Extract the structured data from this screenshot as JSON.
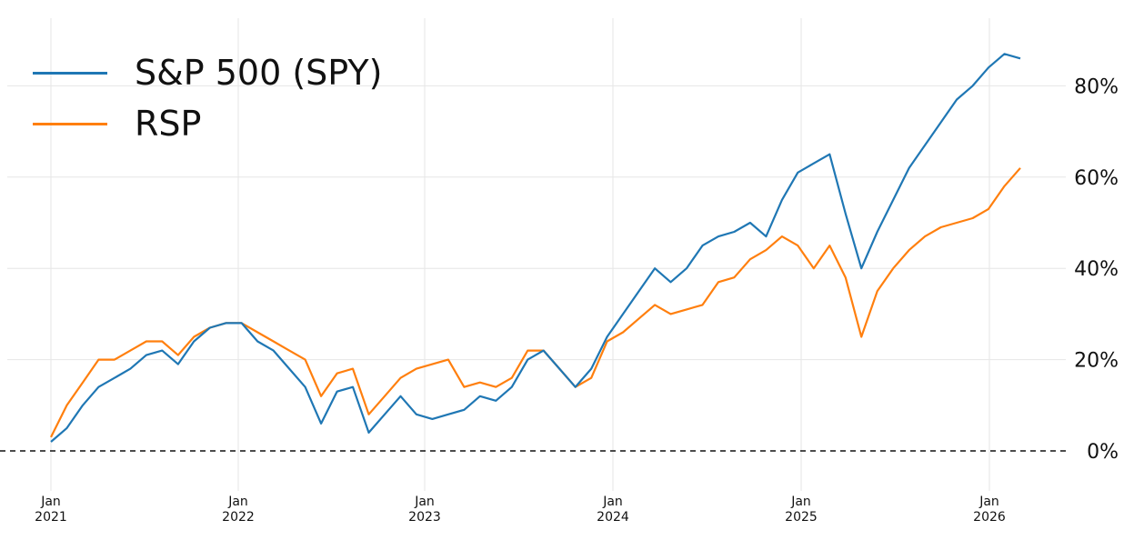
{
  "chart_data": {
    "type": "line",
    "title": "",
    "xlabel": "",
    "ylabel": "",
    "x": [
      "2021-01",
      "2021-02",
      "2021-03",
      "2021-04",
      "2021-05",
      "2021-06",
      "2021-07",
      "2021-08",
      "2021-09",
      "2021-10",
      "2021-11",
      "2021-12",
      "2022-01",
      "2022-02",
      "2022-03",
      "2022-04",
      "2022-05",
      "2022-06",
      "2022-07",
      "2022-08",
      "2022-09",
      "2022-10",
      "2022-11",
      "2022-12",
      "2023-01",
      "2023-02",
      "2023-03",
      "2023-04",
      "2023-05",
      "2023-06",
      "2023-07",
      "2023-08",
      "2023-09",
      "2023-10",
      "2023-11",
      "2023-12",
      "2024-01",
      "2024-02",
      "2024-03",
      "2024-04",
      "2024-05",
      "2024-06",
      "2024-07",
      "2024-08",
      "2024-09",
      "2024-10",
      "2024-11",
      "2024-12",
      "2025-01",
      "2025-02",
      "2025-03",
      "2025-04",
      "2025-05",
      "2025-06",
      "2025-07",
      "2025-08",
      "2025-09",
      "2025-10",
      "2025-11",
      "2025-12",
      "2026-01",
      "2026-02"
    ],
    "series": [
      {
        "name": "S&P 500 (SPY)",
        "color": "#1f77b4",
        "values": [
          2,
          5,
          10,
          14,
          16,
          18,
          21,
          22,
          19,
          24,
          27,
          28,
          28,
          24,
          22,
          18,
          14,
          6,
          13,
          14,
          4,
          8,
          12,
          8,
          7,
          8,
          9,
          12,
          11,
          14,
          20,
          22,
          18,
          14,
          18,
          25,
          30,
          35,
          40,
          37,
          40,
          45,
          47,
          48,
          50,
          47,
          55,
          61,
          63,
          65,
          52,
          40,
          48,
          55,
          62,
          67,
          72,
          77,
          80,
          84,
          87,
          86
        ]
      },
      {
        "name": "RSP",
        "color": "#ff7f0e",
        "values": [
          3,
          10,
          15,
          20,
          20,
          22,
          24,
          24,
          21,
          25,
          27,
          28,
          28,
          26,
          24,
          22,
          20,
          12,
          17,
          18,
          8,
          12,
          16,
          18,
          19,
          20,
          14,
          15,
          14,
          16,
          22,
          22,
          18,
          14,
          16,
          24,
          26,
          29,
          32,
          30,
          31,
          32,
          37,
          38,
          42,
          44,
          47,
          45,
          40,
          45,
          38,
          25,
          35,
          40,
          44,
          47,
          49,
          50,
          51,
          53,
          58,
          62
        ]
      }
    ],
    "y_ticks": [
      "0%",
      "20%",
      "40%",
      "60%",
      "80%"
    ],
    "y_tick_values": [
      0,
      20,
      40,
      60,
      80
    ],
    "x_ticks": [
      {
        "month": "Jan",
        "year": "2021"
      },
      {
        "month": "Jan",
        "year": "2022"
      },
      {
        "month": "Jan",
        "year": "2023"
      },
      {
        "month": "Jan",
        "year": "2024"
      },
      {
        "month": "Jan",
        "year": "2025"
      },
      {
        "month": "Jan",
        "year": "2026"
      }
    ],
    "ylim": [
      -8,
      92
    ],
    "grid": true,
    "zero_line": "dashed",
    "legend_position": "top-left"
  },
  "legend": {
    "items": [
      {
        "label": "S&P 500 (SPY)",
        "color": "#1f77b4"
      },
      {
        "label": "RSP",
        "color": "#ff7f0e"
      }
    ]
  }
}
